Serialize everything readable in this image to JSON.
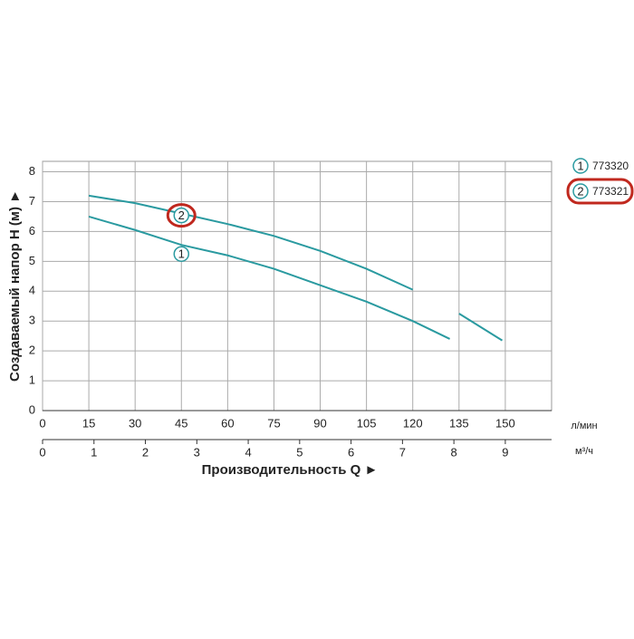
{
  "chart_data": {
    "type": "line",
    "ylabel": "Создаваемый напор H (м) ►",
    "xlabel": "Производительность Q ►",
    "x_unit": "л/мин",
    "x2_unit": "м³/ч",
    "x": [
      15,
      30,
      45,
      60,
      75,
      90,
      105,
      120,
      132,
      135,
      149
    ],
    "series": [
      {
        "name": "773320",
        "marker": "1",
        "color": "#2a9aa0",
        "highlighted": false,
        "values": [
          6.5,
          6.05,
          5.55,
          5.2,
          4.75,
          4.2,
          3.65,
          3.0,
          2.4,
          null,
          null
        ]
      },
      {
        "name": "773321",
        "marker": "2",
        "color": "#2a9aa0",
        "highlighted": true,
        "values": [
          7.2,
          6.95,
          6.6,
          6.25,
          5.85,
          5.35,
          4.75,
          4.05,
          null,
          3.25,
          2.35
        ]
      }
    ],
    "xlim": [
      0,
      165
    ],
    "xticks": [
      0,
      15,
      30,
      45,
      60,
      75,
      90,
      105,
      120,
      135,
      150
    ],
    "x2lim": [
      0,
      9.9
    ],
    "x2ticks": [
      0,
      1,
      2,
      3,
      4,
      5,
      6,
      7,
      8,
      9
    ],
    "ylim": [
      0,
      8.35
    ],
    "yticks": [
      0,
      1,
      2,
      3,
      4,
      5,
      6,
      7,
      8
    ],
    "grid": true,
    "highlight_color": "#c0281e"
  }
}
